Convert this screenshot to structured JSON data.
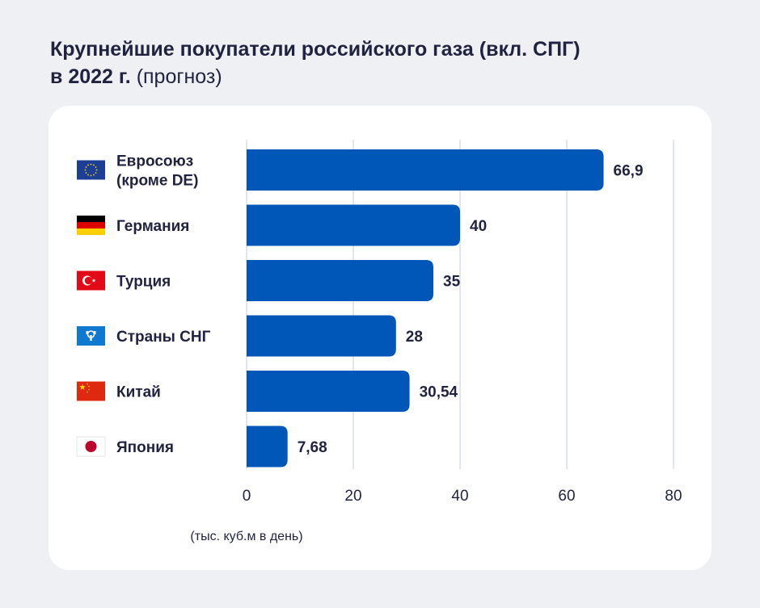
{
  "title": {
    "line1": "Крупнейшие покупатели российского газа (вкл. СПГ)",
    "line2_bold": "в 2022 г.",
    "line2_light": "(прогноз)"
  },
  "colors": {
    "bar": "#0057b7",
    "grid": "#d9dee8",
    "text": "#1f2340",
    "background": "#eef0f3",
    "card": "#ffffff"
  },
  "chart_data": {
    "type": "bar",
    "orientation": "horizontal",
    "title": "Крупнейшие покупатели российского газа (вкл. СПГ) в 2022 г. (прогноз)",
    "xlabel": "(тыс. куб.м в день)",
    "xlim": [
      0,
      80
    ],
    "xticks": [
      "0",
      "20",
      "40",
      "60",
      "80"
    ],
    "categories": [
      {
        "lines": [
          "Евросоюз",
          "(кроме DE)"
        ],
        "flag": "eu-flag-icon"
      },
      {
        "lines": [
          "Германия"
        ],
        "flag": "germany-flag-icon"
      },
      {
        "lines": [
          "Турция"
        ],
        "flag": "turkey-flag-icon"
      },
      {
        "lines": [
          "Страны СНГ"
        ],
        "flag": "cis-flag-icon"
      },
      {
        "lines": [
          "Китай"
        ],
        "flag": "china-flag-icon"
      },
      {
        "lines": [
          "Япония"
        ],
        "flag": "japan-flag-icon"
      }
    ],
    "values": [
      66.9,
      40,
      35,
      28,
      30.54,
      7.68
    ],
    "value_labels": [
      "66,9",
      "40",
      "35",
      "28",
      "30,54",
      "7,68"
    ],
    "grid": true
  }
}
